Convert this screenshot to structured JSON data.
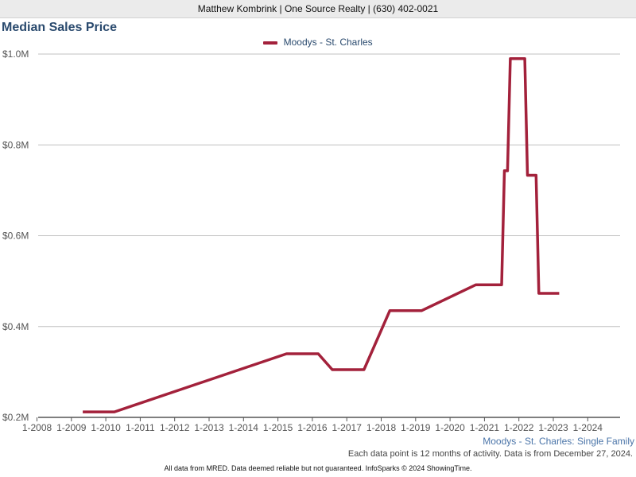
{
  "header": {
    "text": "Matthew Kombrink | One Source Realty | (630) 402-0021"
  },
  "chart_title": "Median Sales Price",
  "chart_subtitle": "Moodys - St. Charles: Single Family",
  "note": "Each data point is 12 months of activity. Data is from December 27, 2024.",
  "footer": "All data from MRED. Data deemed reliable but not guaranteed. InfoSparks © 2024 ShowingTime.",
  "colors": {
    "series": "#a3213b",
    "title": "#2a4a6e",
    "grid": "#c0c0c0"
  },
  "chart_data": {
    "type": "line",
    "title": "Median Sales Price",
    "legend": "top-center",
    "grid": true,
    "xlim": [
      2008.0,
      2024.9
    ],
    "ylim": [
      200000,
      1000000
    ],
    "x_ticks": [
      2008,
      2009,
      2010,
      2011,
      2012,
      2013,
      2014,
      2015,
      2016,
      2017,
      2018,
      2019,
      2020,
      2021,
      2022,
      2023,
      2024
    ],
    "x_tick_labels": [
      "1-2008",
      "1-2009",
      "1-2010",
      "1-2011",
      "1-2012",
      "1-2013",
      "1-2014",
      "1-2015",
      "1-2016",
      "1-2017",
      "1-2018",
      "1-2019",
      "1-2020",
      "1-2021",
      "1-2022",
      "1-2023",
      "1-2024"
    ],
    "y_ticks": [
      200000,
      400000,
      600000,
      800000,
      1000000
    ],
    "y_tick_labels": [
      "$0.2M",
      "$0.4M",
      "$0.6M",
      "$0.8M",
      "$1.0M"
    ],
    "series": [
      {
        "name": "Moodys - St. Charles",
        "points": [
          [
            2009.33,
            212000
          ],
          [
            2010.25,
            212000
          ],
          [
            2015.25,
            340000
          ],
          [
            2016.17,
            340000
          ],
          [
            2016.58,
            305000
          ],
          [
            2017.5,
            305000
          ],
          [
            2018.25,
            435000
          ],
          [
            2019.17,
            435000
          ],
          [
            2020.75,
            492000
          ],
          [
            2021.5,
            492000
          ],
          [
            2021.58,
            743000
          ],
          [
            2021.67,
            743000
          ],
          [
            2021.75,
            990000
          ],
          [
            2022.17,
            990000
          ],
          [
            2022.25,
            733000
          ],
          [
            2022.5,
            733000
          ],
          [
            2022.58,
            473000
          ],
          [
            2023.17,
            473000
          ]
        ]
      }
    ]
  }
}
